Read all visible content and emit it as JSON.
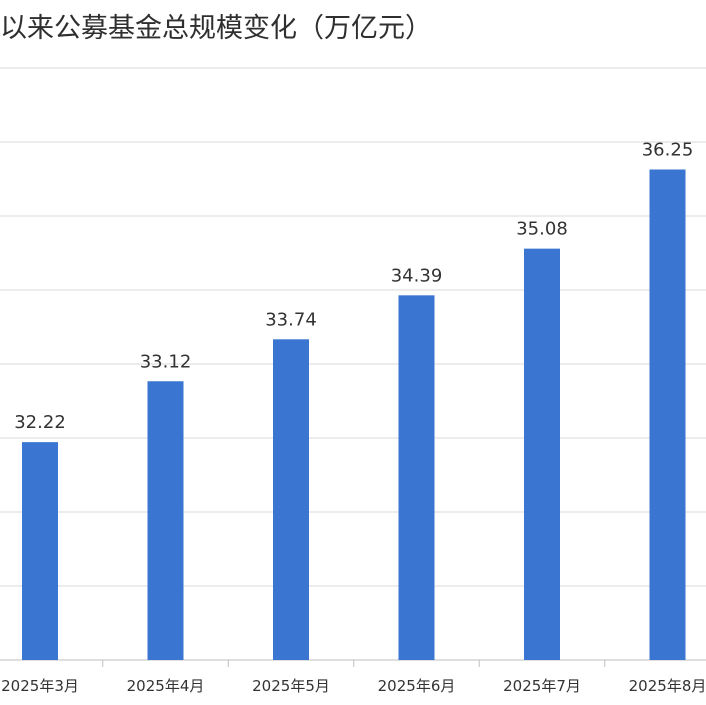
{
  "title": "以来公募基金总规模变化（万亿元）",
  "colors": {
    "bar": "#3a75d1",
    "grid": "#d9d9d9",
    "text": "#333333"
  },
  "chart_data": {
    "type": "bar",
    "title": "以来公募基金总规模变化（万亿元）",
    "categories": [
      "2025年3月",
      "2025年4月",
      "2025年5月",
      "2025年6月",
      "2025年7月",
      "2025年8月"
    ],
    "values": [
      32.22,
      33.12,
      33.74,
      34.39,
      35.08,
      36.25
    ],
    "value_labels": [
      "32.22",
      "33.12",
      "33.74",
      "34.39",
      "35.08",
      "36.25"
    ],
    "xlabel": "",
    "ylabel": "",
    "ylim": [
      29,
      37.75
    ],
    "grid": true,
    "legend": "none"
  }
}
